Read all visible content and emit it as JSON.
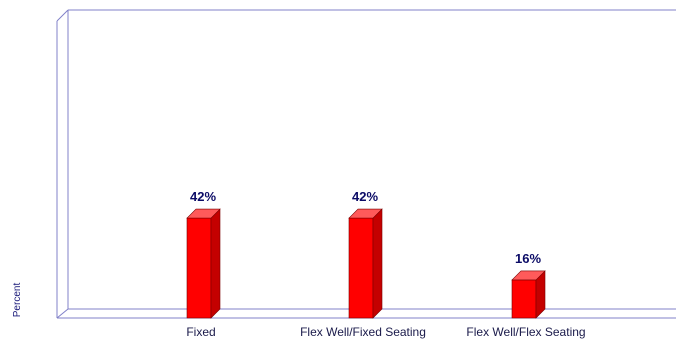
{
  "chart_data": {
    "type": "bar",
    "title": "",
    "xlabel": "",
    "ylabel": "Percent",
    "categories": [
      "Fixed",
      "Flex Well/Fixed Seating",
      "Flex Well/Flex Seating"
    ],
    "values": [
      42,
      42,
      16
    ],
    "value_labels": [
      "42%",
      "42%",
      "16%"
    ],
    "ylim": [
      0,
      100
    ],
    "grid": false,
    "legend": "none",
    "style": "3d",
    "colors": {
      "bar_front": "#ff0000",
      "bar_side": "#c40000",
      "bar_top": "#ff5a5a",
      "frame": "#8080c8",
      "value_label": "#0b0b66",
      "axis_label": "#1a1a7a"
    }
  }
}
